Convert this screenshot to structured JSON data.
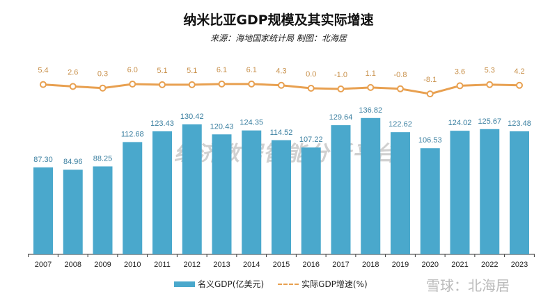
{
  "chart_data": {
    "type": "bar+line",
    "title": "纳米比亚GDP规模及其实际增速",
    "subtitle": "来源：海地国家统计局 制图：北海居",
    "categories": [
      "2007",
      "2008",
      "2009",
      "2010",
      "2011",
      "2012",
      "2013",
      "2014",
      "2015",
      "2016",
      "2017",
      "2018",
      "2019",
      "2020",
      "2021",
      "2022",
      "2023"
    ],
    "series": [
      {
        "name": "名义GDP(亿美元)",
        "type": "bar",
        "color": "#4aa8cc",
        "values": [
          87.3,
          84.96,
          88.25,
          112.68,
          123.43,
          130.42,
          120.43,
          124.35,
          114.52,
          107.22,
          129.64,
          136.82,
          122.62,
          106.53,
          124.02,
          125.67,
          123.48
        ],
        "labels": [
          "87.30",
          "84.96",
          "88.25",
          "112.68",
          "123.43",
          "130.42",
          "120.43",
          "124.35",
          "114.52",
          "107.22",
          "129.64",
          "136.82",
          "122.62",
          "106.53",
          "124.02",
          "125.67",
          "123.48"
        ]
      },
      {
        "name": "实际GDP增速(%)",
        "type": "line",
        "color": "#e8a050",
        "values": [
          5.4,
          2.6,
          0.3,
          6.0,
          5.1,
          5.1,
          6.1,
          6.1,
          4.3,
          0.0,
          -1.0,
          1.1,
          -0.8,
          -8.1,
          3.6,
          5.3,
          4.2
        ],
        "labels": [
          "5.4",
          "2.6",
          "0.3",
          "6.0",
          "5.1",
          "5.1",
          "6.1",
          "6.1",
          "4.3",
          "0.0",
          "-1.0",
          "1.1",
          "-0.8",
          "-8.1",
          "3.6",
          "5.3",
          "4.2"
        ]
      }
    ],
    "legend_position": "bottom",
    "grid": false
  },
  "watermark": {
    "platform": "经济数据智能分析平台",
    "xueqiu": "雪球：北海居"
  }
}
